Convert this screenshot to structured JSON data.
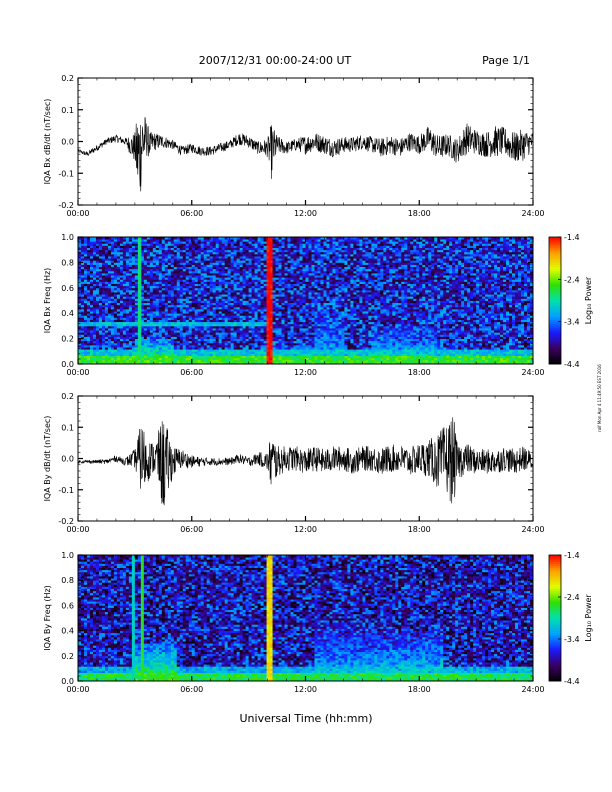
{
  "header": {
    "date_range": "2007/12/31  00:00-24:00 UT",
    "page": "Page 1/1"
  },
  "side_note": "rolf Mon Apr 4 11:49:50 EST 2016",
  "xlabel": "Universal Time (hh:mm)",
  "colors": {
    "colormap": [
      "#000000",
      "#3a0060",
      "#1a1aff",
      "#00a0ff",
      "#00e0b0",
      "#30e000",
      "#e0ff00",
      "#ffa000",
      "#ff0000"
    ],
    "background": "#ffffff",
    "line": "#000000"
  },
  "chart_data": [
    {
      "type": "line",
      "ylabel": "IQA Bx dB/dt (nT/sec)",
      "xlim": [
        0,
        24
      ],
      "x_tick_labels": [
        "00:00",
        "06:00",
        "12:00",
        "18:00",
        "24:00"
      ],
      "ylim": [
        -0.2,
        0.2
      ],
      "y_tick_labels": [
        "-0.2",
        "-0.1",
        "0.0",
        "0.1",
        "0.2"
      ],
      "y_ticks": [
        -0.2,
        -0.1,
        0,
        0.1,
        0.2
      ],
      "grid": false,
      "series": [
        {
          "x": [
            0,
            0.5,
            1,
            1.5,
            2,
            2.5,
            3,
            3.2,
            3.4,
            3.6,
            3.8,
            4,
            4.5,
            5,
            5.5,
            6,
            6.5,
            7,
            7.5,
            8,
            8.5,
            9,
            9.5,
            10,
            10.2,
            10.5,
            11,
            11.5,
            12,
            12.5,
            13,
            13.5,
            14,
            14.5,
            15,
            15.5,
            16,
            16.5,
            17,
            17.5,
            18,
            18.5,
            19,
            19.5,
            20,
            20.5,
            21,
            21.5,
            22,
            22.5,
            23,
            23.5,
            24
          ],
          "y": [
            -0.03,
            -0.04,
            -0.02,
            0.0,
            0.01,
            0.0,
            -0.02,
            -0.05,
            0.0,
            0.01,
            -0.01,
            0.0,
            0.0,
            -0.01,
            -0.03,
            -0.02,
            -0.03,
            -0.03,
            -0.02,
            -0.01,
            0.01,
            0.0,
            -0.02,
            -0.02,
            -0.03,
            -0.01,
            -0.02,
            -0.01,
            -0.01,
            0.0,
            -0.01,
            -0.02,
            -0.01,
            -0.01,
            0.0,
            -0.01,
            -0.02,
            -0.01,
            -0.02,
            0.0,
            -0.01,
            0.01,
            -0.02,
            -0.01,
            -0.03,
            0.01,
            0.0,
            -0.01,
            0.0,
            0.0,
            -0.02,
            -0.01,
            0.0
          ],
          "envelope": [
            0.005,
            0.008,
            0.01,
            0.01,
            0.012,
            0.012,
            0.05,
            0.17,
            0.12,
            0.06,
            0.04,
            0.03,
            0.02,
            0.015,
            0.015,
            0.015,
            0.015,
            0.015,
            0.015,
            0.015,
            0.02,
            0.02,
            0.02,
            0.03,
            0.09,
            0.03,
            0.02,
            0.02,
            0.03,
            0.03,
            0.03,
            0.03,
            0.025,
            0.025,
            0.025,
            0.025,
            0.03,
            0.03,
            0.03,
            0.03,
            0.03,
            0.04,
            0.04,
            0.035,
            0.04,
            0.05,
            0.04,
            0.04,
            0.05,
            0.045,
            0.05,
            0.05,
            0.03
          ]
        }
      ]
    },
    {
      "type": "heatmap",
      "ylabel": "IQA Bx Freq (Hz)",
      "xlim": [
        0,
        24
      ],
      "x_tick_labels": [
        "00:00",
        "06:00",
        "12:00",
        "18:00",
        "24:00"
      ],
      "ylim": [
        0,
        1.0
      ],
      "y_tick_labels": [
        "0.0",
        "0.2",
        "0.4",
        "0.6",
        "0.8",
        "1.0"
      ],
      "y_ticks": [
        0,
        0.2,
        0.4,
        0.6,
        0.8,
        1.0
      ],
      "colorbar": {
        "label": "Log₁₀ Power",
        "range": [
          -4.4,
          -1.4
        ],
        "tick_labels": [
          "-1.4",
          "-2.4",
          "-3.4",
          "-4.4"
        ],
        "ticks": [
          -1.4,
          -2.4,
          -3.4,
          -4.4
        ]
      },
      "features": {
        "base_level": -3.7,
        "low_freq_band": {
          "freq_max": 0.06,
          "level": -2.6
        },
        "horizontal_line": {
          "freq": 0.32,
          "time_end": 10.2,
          "level": -3.1
        },
        "vertical_lines": [
          {
            "time": 3.3,
            "level": -2.8
          },
          {
            "time": 10.1,
            "level": -1.4
          }
        ],
        "bursts": [
          {
            "t0": 3.0,
            "t1": 5.0,
            "f_max": 0.2,
            "level": -2.5
          },
          {
            "t0": 10.3,
            "t1": 12.5,
            "f_max": 0.15,
            "level": -2.7
          },
          {
            "t0": 12.5,
            "t1": 14.0,
            "f_max": 0.42,
            "level": -3.0
          },
          {
            "t0": 15.5,
            "t1": 19.0,
            "f_max": 0.3,
            "level": -2.9
          }
        ]
      }
    },
    {
      "type": "line",
      "ylabel": "IQA By dB/dt (nT/sec)",
      "xlim": [
        0,
        24
      ],
      "x_tick_labels": [
        "00:00",
        "06:00",
        "12:00",
        "18:00",
        "24:00"
      ],
      "ylim": [
        -0.2,
        0.2
      ],
      "y_tick_labels": [
        "-0.2",
        "-0.1",
        "0.0",
        "0.1",
        "0.2"
      ],
      "y_ticks": [
        -0.2,
        -0.1,
        0,
        0.1,
        0.2
      ],
      "grid": false,
      "series": [
        {
          "x": [
            0,
            0.5,
            1,
            1.5,
            2,
            2.5,
            3,
            3.2,
            3.4,
            3.6,
            3.8,
            4,
            4.2,
            4.5,
            5,
            5.5,
            6,
            6.5,
            7,
            7.5,
            8,
            8.5,
            9,
            9.5,
            10,
            10.2,
            10.5,
            11,
            11.5,
            12,
            12.5,
            13,
            13.5,
            14,
            14.5,
            15,
            15.5,
            16,
            16.5,
            17,
            17.5,
            18,
            18.5,
            19,
            19.5,
            19.8,
            20,
            20.5,
            21,
            21.5,
            22,
            22.5,
            23,
            23.5,
            24
          ],
          "y": [
            -0.01,
            -0.01,
            -0.01,
            -0.01,
            0.0,
            -0.01,
            0.0,
            0.0,
            0.0,
            -0.01,
            0.0,
            0.0,
            0.0,
            -0.02,
            -0.01,
            0.0,
            -0.01,
            -0.01,
            -0.01,
            -0.01,
            -0.01,
            0.0,
            -0.01,
            0.0,
            -0.01,
            -0.01,
            -0.01,
            0.0,
            0.0,
            -0.01,
            0.0,
            -0.01,
            0.0,
            0.0,
            -0.01,
            0.0,
            0.0,
            -0.01,
            0.0,
            0.0,
            -0.01,
            0.0,
            0.0,
            -0.01,
            0.0,
            -0.01,
            -0.01,
            0.0,
            -0.01,
            -0.01,
            -0.01,
            0.0,
            -0.01,
            0.0,
            -0.01
          ],
          "envelope": [
            0.005,
            0.005,
            0.006,
            0.008,
            0.01,
            0.012,
            0.03,
            0.09,
            0.12,
            0.08,
            0.06,
            0.05,
            0.08,
            0.16,
            0.05,
            0.03,
            0.02,
            0.015,
            0.012,
            0.012,
            0.012,
            0.015,
            0.015,
            0.02,
            0.03,
            0.1,
            0.05,
            0.04,
            0.04,
            0.04,
            0.04,
            0.04,
            0.04,
            0.04,
            0.04,
            0.04,
            0.04,
            0.045,
            0.045,
            0.045,
            0.045,
            0.05,
            0.06,
            0.09,
            0.12,
            0.15,
            0.06,
            0.05,
            0.04,
            0.04,
            0.04,
            0.04,
            0.04,
            0.04,
            0.03
          ]
        }
      ]
    },
    {
      "type": "heatmap",
      "ylabel": "IQA By Freq (Hz)",
      "xlim": [
        0,
        24
      ],
      "x_tick_labels": [
        "00:00",
        "06:00",
        "12:00",
        "18:00",
        "24:00"
      ],
      "ylim": [
        0,
        1.0
      ],
      "y_tick_labels": [
        "0.0",
        "0.2",
        "0.4",
        "0.6",
        "0.8",
        "1.0"
      ],
      "y_ticks": [
        0,
        0.2,
        0.4,
        0.6,
        0.8,
        1.0
      ],
      "colorbar": {
        "label": "Log₁₀ Power",
        "range": [
          -4.4,
          -1.4
        ],
        "tick_labels": [
          "-1.4",
          "-2.4",
          "-3.4",
          "-4.4"
        ],
        "ticks": [
          -1.4,
          -2.4,
          -3.4,
          -4.4
        ]
      },
      "features": {
        "base_level": -3.8,
        "low_freq_band": {
          "freq_max": 0.06,
          "level": -2.7
        },
        "horizontal_line": null,
        "vertical_lines": [
          {
            "time": 2.9,
            "level": -3.0
          },
          {
            "time": 3.4,
            "level": -2.6
          },
          {
            "time": 10.1,
            "level": -2.0
          }
        ],
        "bursts": [
          {
            "t0": 3.0,
            "t1": 5.2,
            "f_max": 0.3,
            "level": -2.5
          },
          {
            "t0": 10.2,
            "t1": 12.5,
            "f_max": 0.12,
            "level": -2.8
          },
          {
            "t0": 12.5,
            "t1": 15.0,
            "f_max": 0.45,
            "level": -3.0
          },
          {
            "t0": 15.0,
            "t1": 19.2,
            "f_max": 0.4,
            "level": -2.9
          },
          {
            "t0": 19.2,
            "t1": 24.0,
            "f_max": 0.12,
            "level": -2.8
          }
        ]
      }
    }
  ]
}
